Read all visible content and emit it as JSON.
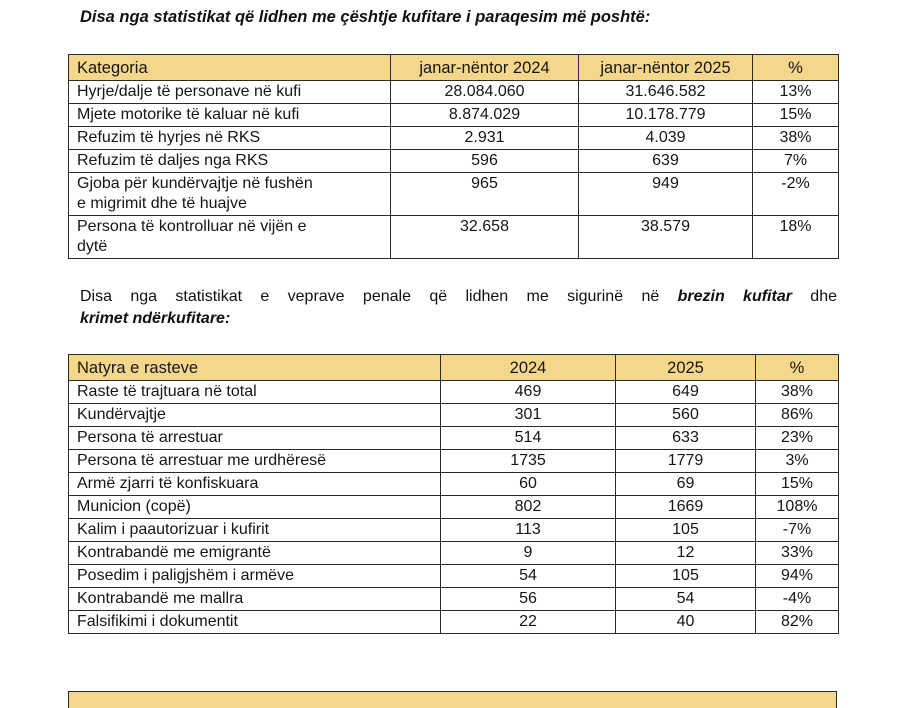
{
  "document": {
    "heading1": "Disa nga statistikat që lidhen me çështje kufitare i paraqesim më poshtë:",
    "intro2": {
      "line1_pre": "Disa nga statistikat e veprave penale që lidhen me sigurinë në ",
      "line1_bold": "brezin kufitar",
      "line1_post": " dhe",
      "line2_bold": "krimet ndërkufitare:"
    }
  },
  "colors": {
    "table_header_bg": "#F5D78B",
    "table_border": "#2a2a2a",
    "text": "#1a1a1a",
    "page_bg": "#ffffff"
  },
  "table1": {
    "headers": [
      "Kategoria",
      "janar-nëntor 2024",
      "janar-nëntor 2025",
      "%"
    ],
    "rows": [
      [
        "Hyrje/dalje të personave në kufi",
        "28.084.060",
        "31.646.582",
        "13%"
      ],
      [
        "Mjete motorike të kaluar në kufi",
        "8.874.029",
        "10.178.779",
        "15%"
      ],
      [
        "Refuzim të hyrjes në RKS",
        "2.931",
        "4.039",
        "38%"
      ],
      [
        "Refuzim të daljes nga RKS",
        "596",
        "639",
        "7%"
      ],
      [
        "Gjoba për kundërvajtje në fushën\ne migrimit dhe të huajve",
        "965",
        "949",
        "-2%"
      ],
      [
        "Persona të kontrolluar në vijën e\ndytë",
        "32.658",
        "38.579",
        "18%"
      ]
    ]
  },
  "table2": {
    "headers": [
      "Natyra e rasteve",
      "2024",
      "2025",
      "%"
    ],
    "rows": [
      [
        "Raste të trajtuara në total",
        "469",
        "649",
        "38%"
      ],
      [
        "Kundërvajtje",
        "301",
        "560",
        "86%"
      ],
      [
        "Persona të arrestuar",
        "514",
        "633",
        "23%"
      ],
      [
        "Persona të arrestuar me urdhëresë",
        "1735",
        "1779",
        "3%"
      ],
      [
        "Armë zjarri të konfiskuara",
        "60",
        "69",
        "15%"
      ],
      [
        "Municion (copë)",
        "802",
        "1669",
        "108%"
      ],
      [
        "Kalim i paautorizuar i kufirit",
        "113",
        "105",
        "-7%"
      ],
      [
        "Kontrabandë me emigrantë",
        "9",
        "12",
        "33%"
      ],
      [
        "Posedim i paligjshëm i armëve",
        "54",
        "105",
        "94%"
      ],
      [
        "Kontrabandë me mallra",
        "56",
        "54",
        "-4%"
      ],
      [
        "Falsifikimi i dokumentit",
        "22",
        "40",
        "82%"
      ]
    ]
  }
}
